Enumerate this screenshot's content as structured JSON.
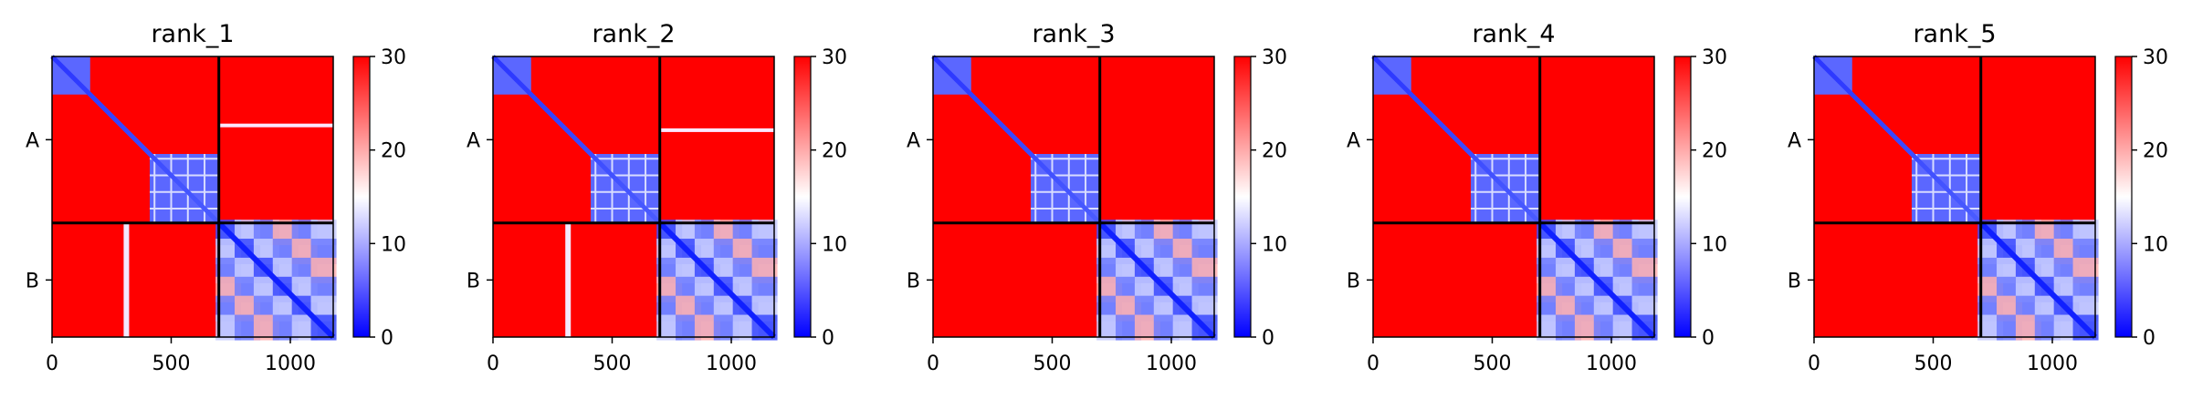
{
  "chart_data": [
    {
      "type": "heatmap",
      "title": "rank_1",
      "x_ticks": [
        0,
        500,
        1000
      ],
      "y_tick_labels": [
        "A",
        "B"
      ],
      "chain_boundaries": [
        0,
        700,
        1180
      ],
      "colorbar": {
        "ticks": [
          0,
          10,
          20,
          30
        ],
        "vmin": 0,
        "vmax": 30,
        "colors": [
          "#0000ff",
          "#ffffff",
          "#ff0000"
        ]
      },
      "off_diagonal_streak": {
        "x": 312,
        "y_band": [
          700,
          1180
        ]
      },
      "horizontal_streak": {
        "y": 290,
        "x_band": [
          700,
          1180
        ]
      }
    },
    {
      "type": "heatmap",
      "title": "rank_2",
      "x_ticks": [
        0,
        500,
        1000
      ],
      "y_tick_labels": [
        "A",
        "B"
      ],
      "chain_boundaries": [
        0,
        700,
        1180
      ],
      "colorbar": {
        "ticks": [
          0,
          10,
          20,
          30
        ],
        "vmin": 0,
        "vmax": 30,
        "colors": [
          "#0000ff",
          "#ffffff",
          "#ff0000"
        ]
      },
      "off_diagonal_streak": {
        "x": 315,
        "y_band": [
          700,
          1180
        ]
      },
      "horizontal_streak": {
        "y": 310,
        "x_band": [
          700,
          1180
        ]
      }
    },
    {
      "type": "heatmap",
      "title": "rank_3",
      "x_ticks": [
        0,
        500,
        1000
      ],
      "y_tick_labels": [
        "A",
        "B"
      ],
      "chain_boundaries": [
        0,
        700,
        1180
      ],
      "colorbar": {
        "ticks": [
          0,
          10,
          20,
          30
        ],
        "vmin": 0,
        "vmax": 30,
        "colors": [
          "#0000ff",
          "#ffffff",
          "#ff0000"
        ]
      }
    },
    {
      "type": "heatmap",
      "title": "rank_4",
      "x_ticks": [
        0,
        500,
        1000
      ],
      "y_tick_labels": [
        "A",
        "B"
      ],
      "chain_boundaries": [
        0,
        700,
        1180
      ],
      "colorbar": {
        "ticks": [
          0,
          10,
          20,
          30
        ],
        "vmin": 0,
        "vmax": 30,
        "colors": [
          "#0000ff",
          "#ffffff",
          "#ff0000"
        ]
      }
    },
    {
      "type": "heatmap",
      "title": "rank_5",
      "x_ticks": [
        0,
        500,
        1000
      ],
      "y_tick_labels": [
        "A",
        "B"
      ],
      "chain_boundaries": [
        0,
        700,
        1180
      ],
      "colorbar": {
        "ticks": [
          0,
          10,
          20,
          30
        ],
        "vmin": 0,
        "vmax": 30,
        "colors": [
          "#0000ff",
          "#ffffff",
          "#ff0000"
        ]
      }
    }
  ]
}
